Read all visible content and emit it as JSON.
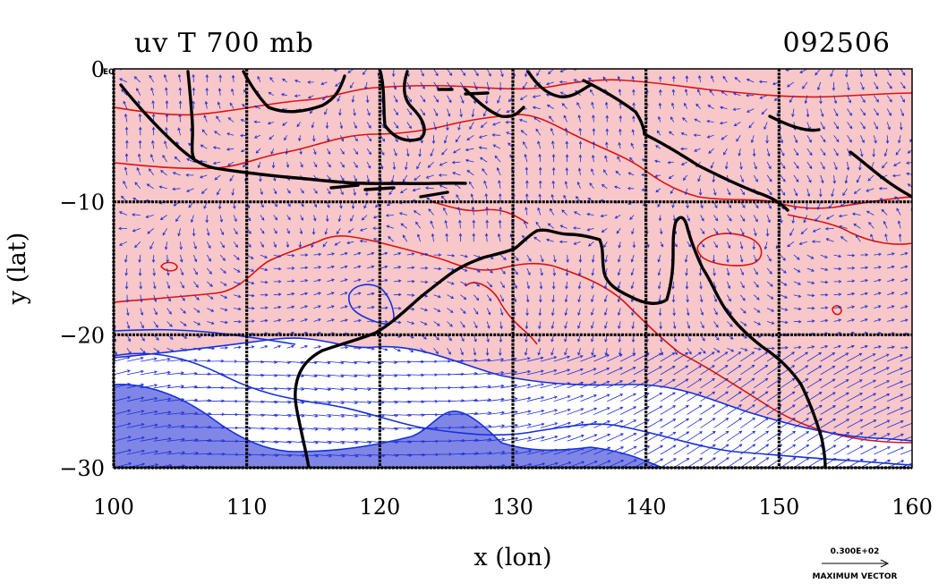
{
  "title_left": "uv T 700 mb",
  "title_right": "092506",
  "x_axis_label": "x (lon)",
  "y_axis_label": "y (lat)",
  "corner_label": "E0",
  "vector_key_value": "0.300E+02",
  "vector_key_label": "MAXIMUM VECTOR",
  "colors": {
    "warm_fill": "#f7c7c9",
    "cool_fill": "#7f86e6",
    "warm_contour": "#dd1111",
    "cool_contour": "#1530dd",
    "vector": "#1f2fd6",
    "coast": "#000000",
    "grid": "#000000"
  },
  "chart_data": {
    "type": "map",
    "xlim": [
      100,
      160
    ],
    "ylim": [
      -30,
      0
    ],
    "x_ticks": [
      100,
      110,
      120,
      130,
      140,
      150,
      160
    ],
    "y_ticks": [
      0,
      -10,
      -20,
      -30
    ],
    "x_tick_labels": [
      "100",
      "110",
      "120",
      "130",
      "140",
      "150",
      "160"
    ],
    "y_tick_labels": [
      "0",
      "−10",
      "−20",
      "−30"
    ],
    "grid": true,
    "level_mb": 700,
    "fields": [
      "uv",
      "T"
    ]
  }
}
